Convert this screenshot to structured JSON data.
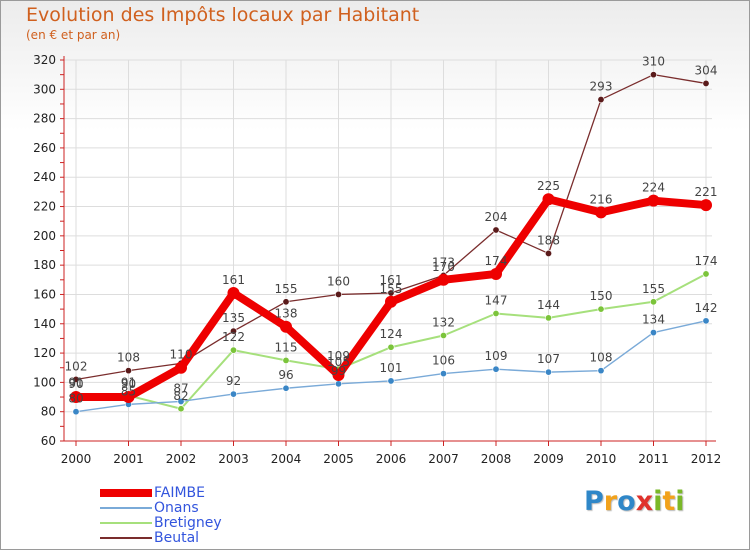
{
  "colors": {
    "title": "#d0601e",
    "axis": "#cc2222",
    "grid": "#dddddd"
  },
  "logo": {
    "letters": [
      "P",
      "r",
      "o",
      "x",
      "i",
      "t",
      "i"
    ],
    "colors": [
      "#2f87c8",
      "#f2a21b",
      "#2f87c8",
      "#e0322c",
      "#7ab828",
      "#f2a21b",
      "#7ab828"
    ]
  },
  "chart_data": {
    "type": "line",
    "title": "Evolution des Impôts locaux par Habitant",
    "subtitle": "(en € et par an)",
    "xlabel": "",
    "ylabel": "",
    "ylim": [
      60,
      320
    ],
    "yticks": [
      60,
      80,
      100,
      120,
      140,
      160,
      180,
      200,
      220,
      240,
      260,
      280,
      300,
      320
    ],
    "x": [
      "2000",
      "2001",
      "2002",
      "2003",
      "2004",
      "2005",
      "2006",
      "2007",
      "2008",
      "2009",
      "2010",
      "2011",
      "2012"
    ],
    "grid": true,
    "legend_position": "bottom-left",
    "series": [
      {
        "name": "Beutal",
        "color": "#7a2d2d",
        "width": 1.3,
        "marker_fill": "#5a1a1a",
        "values": [
          102,
          108,
          113,
          135,
          155,
          160,
          161,
          173,
          204,
          188,
          293,
          310,
          304
        ],
        "labels": [
          "102",
          "108",
          "",
          "135",
          "155",
          "160",
          "161",
          "173",
          "204",
          "188",
          "293",
          "310",
          "304"
        ]
      },
      {
        "name": "Bretigney",
        "color": "#a6e07c",
        "width": 2,
        "marker_fill": "#7bc43a",
        "values": [
          91,
          91,
          82,
          122,
          115,
          109,
          124,
          132,
          147,
          144,
          150,
          155,
          174
        ],
        "labels": [
          "91",
          "91",
          "82",
          "122",
          "115",
          "109",
          "124",
          "132",
          "147",
          "144",
          "150",
          "155",
          "174"
        ]
      },
      {
        "name": "Onans",
        "color": "#7aaad8",
        "width": 1.4,
        "marker_fill": "#3a86c6",
        "values": [
          80,
          85,
          87,
          92,
          96,
          99,
          101,
          106,
          109,
          107,
          108,
          134,
          142
        ],
        "labels": [
          "80",
          "85",
          "87",
          "92",
          "96",
          "99",
          "101",
          "106",
          "109",
          "107",
          "108",
          "134",
          "142"
        ]
      },
      {
        "name": "FAIMBE",
        "color": "#ee0000",
        "width": 8,
        "marker_fill": "#ee0000",
        "values": [
          90,
          90,
          110,
          161,
          138,
          105,
          155,
          170,
          174,
          225,
          216,
          224,
          221
        ],
        "labels": [
          "90",
          "90",
          "110",
          "161",
          "138",
          "105",
          "155",
          "170",
          "174",
          "225",
          "216",
          "224",
          "221"
        ]
      }
    ],
    "legend_order": [
      "FAIMBE",
      "Onans",
      "Bretigney",
      "Beutal"
    ],
    "legend_label_color": "#3355dd"
  }
}
